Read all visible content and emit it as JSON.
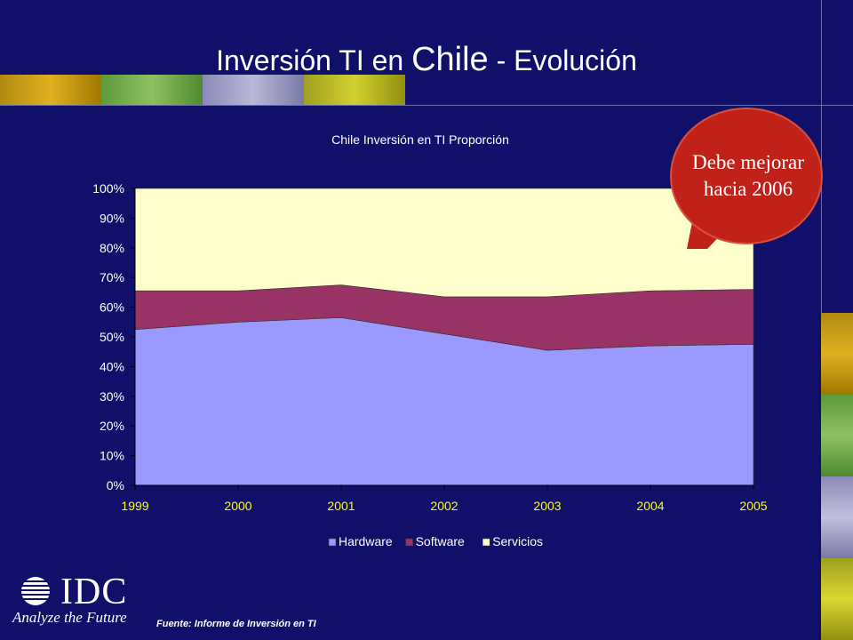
{
  "slide": {
    "title_part1": "Inversión  TI en ",
    "title_part2": "Chile",
    "title_part3": " - Evolución",
    "callout": "Debe mejorar hacia 2006",
    "logo_text": "IDC",
    "tagline": "Analyze the Future",
    "source": "Fuente: Informe de Inversión en TI",
    "colors": {
      "background": "#10106b",
      "plot_area": "#ffffcc",
      "hardware": "#9999ff",
      "software": "#993366",
      "servicios": "#ffffcc",
      "callout": "#c0221a"
    }
  },
  "chart_data": {
    "type": "area",
    "stacked_percent": true,
    "title": "Chile Inversión en TI Proporción",
    "categories": [
      "1999",
      "2000",
      "2001",
      "2002",
      "2003",
      "2004",
      "2005"
    ],
    "y_ticks": [
      "0%",
      "10%",
      "20%",
      "30%",
      "40%",
      "50%",
      "60%",
      "70%",
      "80%",
      "90%",
      "100%"
    ],
    "ylim": [
      0,
      100
    ],
    "legend_position": "bottom",
    "series": [
      {
        "name": "Hardware",
        "color": "#9999ff",
        "values": [
          52.5,
          55,
          56.5,
          51,
          45.5,
          47,
          47.5
        ]
      },
      {
        "name": "Software",
        "color": "#993366",
        "values": [
          13,
          10.5,
          11,
          12.5,
          18,
          18.5,
          18.5
        ]
      },
      {
        "name": "Servicios",
        "color": "#ffffcc",
        "values": [
          34.5,
          34.5,
          32.5,
          36.5,
          36.5,
          34.5,
          34
        ]
      }
    ]
  }
}
